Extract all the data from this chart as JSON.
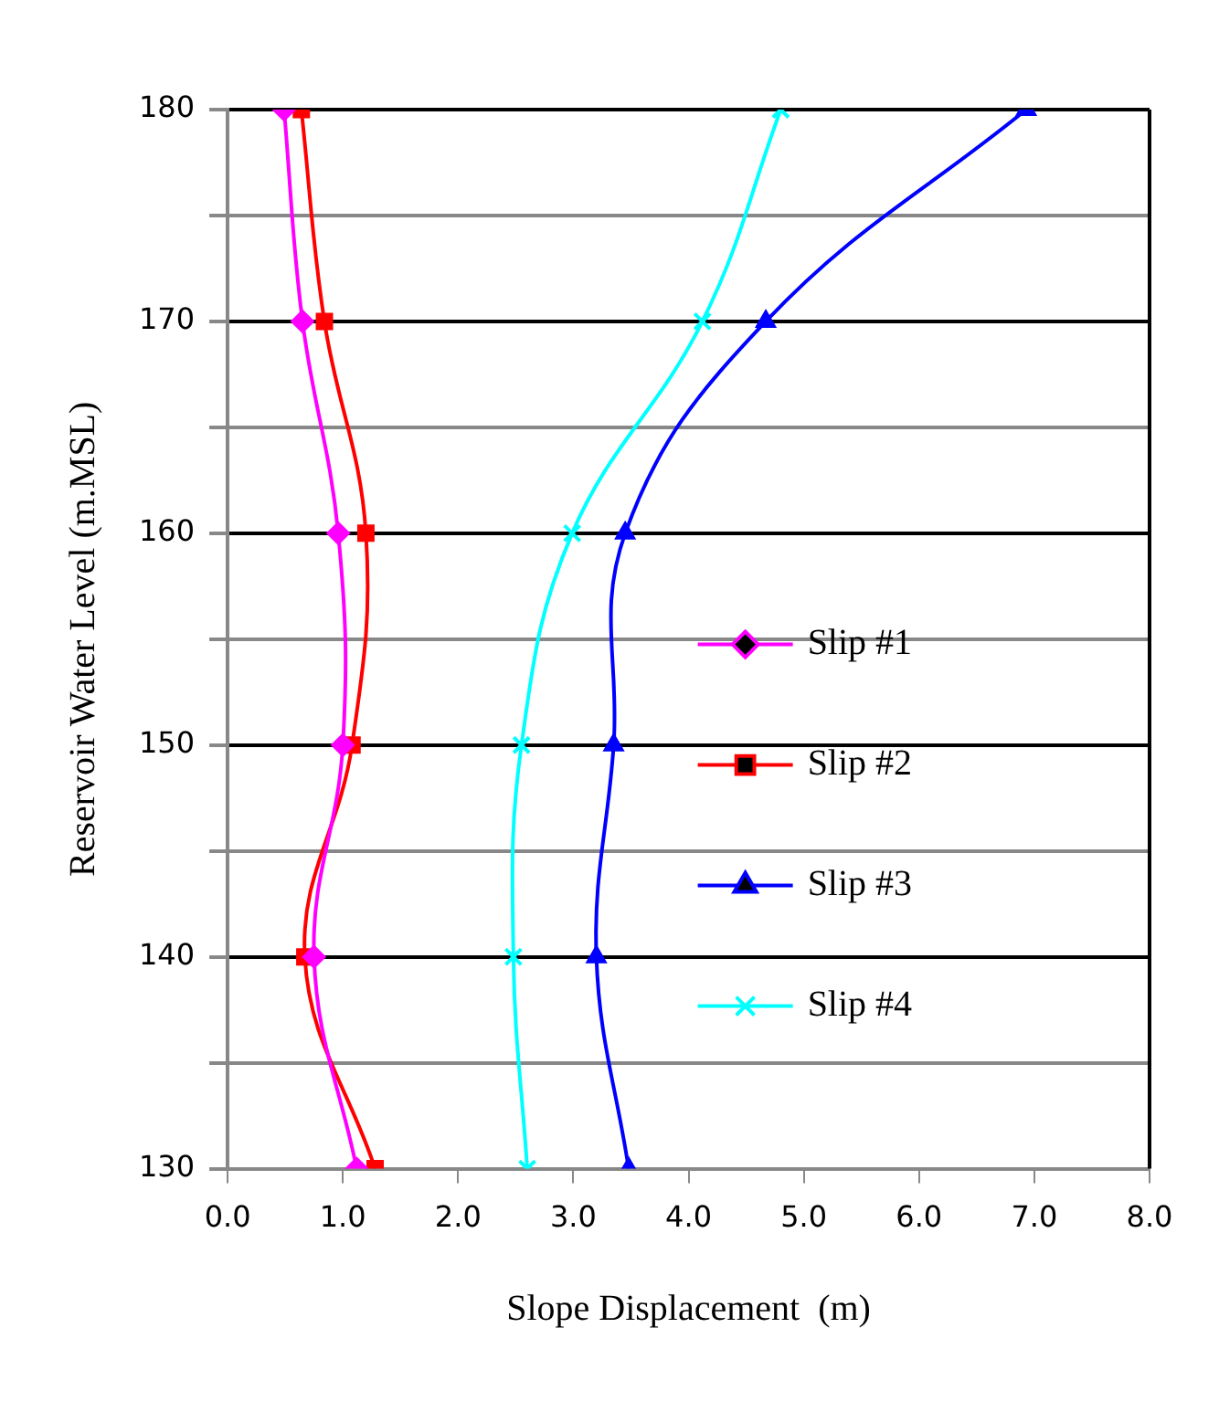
{
  "chart_data": {
    "type": "line",
    "xlabel": "Slope Displacement  (m)",
    "ylabel": "Reservoir Water Level (m.MSL)",
    "xlim": [
      0,
      8
    ],
    "xticks": [
      {
        "value": 0,
        "label": "0.0"
      },
      {
        "value": 1,
        "label": "1.0"
      },
      {
        "value": 2,
        "label": "2.0"
      },
      {
        "value": 3,
        "label": "3.0"
      },
      {
        "value": 4,
        "label": "4.0"
      },
      {
        "value": 5,
        "label": "5.0"
      },
      {
        "value": 6,
        "label": "6.0"
      },
      {
        "value": 7,
        "label": "7.0"
      },
      {
        "value": 8,
        "label": "8.0"
      }
    ],
    "ylim": [
      130,
      180
    ],
    "yticks": [
      130,
      {
        "value": 135,
        "label": null
      },
      140,
      {
        "value": 145,
        "label": null
      },
      150,
      {
        "value": 155,
        "label": null
      },
      160,
      {
        "value": 165,
        "label": null
      },
      170,
      {
        "value": 175,
        "label": null
      },
      180
    ],
    "grid": "y",
    "legend": "right",
    "series": [
      {
        "name": "Slip #1",
        "color": "#ff00ff",
        "marker": "diamond",
        "x": [
          0.49,
          0.65,
          0.96,
          1.0,
          0.75,
          1.12
        ],
        "values": [
          180,
          170,
          160,
          150,
          140,
          130
        ]
      },
      {
        "name": "Slip #2",
        "color": "#ff0000",
        "marker": "square",
        "x": [
          0.64,
          0.84,
          1.2,
          1.08,
          0.67,
          1.28
        ],
        "values": [
          180,
          170,
          160,
          150,
          140,
          130
        ]
      },
      {
        "name": "Slip #3",
        "color": "#0000ff",
        "marker": "triangle",
        "x": [
          6.93,
          4.67,
          3.45,
          3.35,
          3.2,
          3.48
        ],
        "values": [
          180,
          170,
          160,
          150,
          140,
          130
        ]
      },
      {
        "name": "Slip #4",
        "color": "#00ffff",
        "marker": "cross",
        "x": [
          4.8,
          4.12,
          2.99,
          2.55,
          2.48,
          2.6
        ],
        "values": [
          180,
          170,
          160,
          150,
          140,
          130
        ]
      }
    ]
  }
}
